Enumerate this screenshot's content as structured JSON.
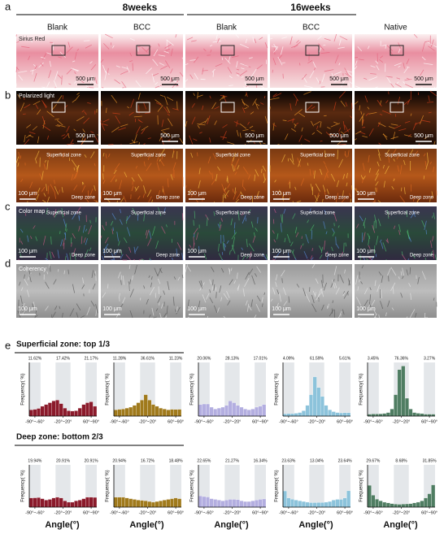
{
  "panel_labels": [
    "a",
    "b",
    "c",
    "d",
    "e"
  ],
  "groups": [
    "8weeks",
    "16weeks"
  ],
  "columns": [
    "Blank",
    "BCC",
    "Blank",
    "BCC",
    "Native"
  ],
  "image_rows": [
    {
      "label": "Sirius Red",
      "scale_bar": "500 μm"
    },
    {
      "label": "Polarized light",
      "scale_bar": "500 μm"
    },
    {
      "scale_bar": "100 μm"
    },
    {
      "label": "Color map",
      "scale_bar": "100 μm"
    },
    {
      "label": "Coherency",
      "scale_bar": "100 μm"
    }
  ],
  "zone_labels": {
    "top": "Superficial zone",
    "bottom": "Deep zone"
  },
  "sections": [
    "Superficial zone: top 1/3",
    "Deep zone: bottom 2/3"
  ],
  "x_axis_label": "Angle(°)",
  "chart_data": [
    {
      "type": "histogram",
      "y_label": "Frequency( %)",
      "color": "#8b1a2b",
      "xlim": [
        -90,
        90
      ],
      "ylim": [
        0,
        30
      ],
      "bins": [
        -90,
        -80,
        -70,
        -60,
        -50,
        -40,
        -30,
        -20,
        -10,
        0,
        10,
        20,
        30,
        40,
        50,
        60,
        70,
        80,
        90
      ],
      "values": [
        3.5,
        3.8,
        4.3,
        5.5,
        6.5,
        7.5,
        8.5,
        9.0,
        7.0,
        4.5,
        3.0,
        2.8,
        3.0,
        4.5,
        6.5,
        7.5,
        8.0,
        5.5
      ],
      "xticks": [
        {
          "value": -75,
          "label": "-90°~-60°"
        },
        {
          "value": 0,
          "label": "-20°~20°"
        },
        {
          "value": 75,
          "label": "60°~90°"
        }
      ],
      "shaded_ranges": [
        [
          -90,
          -60
        ],
        [
          -20,
          20
        ],
        [
          60,
          90
        ]
      ],
      "range_labels": [
        "11.62%",
        "17.42%",
        "21.17%"
      ]
    },
    {
      "type": "histogram",
      "y_label": "Frequency( %)",
      "color": "#a07a1c",
      "xlim": [
        -90,
        90
      ],
      "ylim": [
        0,
        30
      ],
      "bins": [
        -90,
        -80,
        -70,
        -60,
        -50,
        -40,
        -30,
        -20,
        -10,
        0,
        10,
        20,
        30,
        40,
        50,
        60,
        70,
        80,
        90
      ],
      "values": [
        3.5,
        3.8,
        4.0,
        4.5,
        5.0,
        6.0,
        7.5,
        9.0,
        12.0,
        9.0,
        6.5,
        5.5,
        4.5,
        4.0,
        3.5,
        3.8,
        3.7,
        3.8
      ],
      "xticks": [
        {
          "value": -75,
          "label": "-90°~-60°"
        },
        {
          "value": 0,
          "label": "-20°~20°"
        },
        {
          "value": 75,
          "label": "60°~90°"
        }
      ],
      "shaded_ranges": [
        [
          -90,
          -60
        ],
        [
          -20,
          20
        ],
        [
          60,
          90
        ]
      ],
      "range_labels": [
        "11.28%",
        "36.61%",
        "11.23%"
      ]
    },
    {
      "type": "histogram",
      "y_label": "Frequency( %)",
      "color": "#b3aee0",
      "xlim": [
        -90,
        90
      ],
      "ylim": [
        0,
        30
      ],
      "bins": [
        -90,
        -80,
        -70,
        -60,
        -50,
        -40,
        -30,
        -20,
        -10,
        0,
        10,
        20,
        30,
        40,
        50,
        60,
        70,
        80,
        90
      ],
      "values": [
        6.5,
        6.8,
        6.8,
        5.0,
        4.0,
        4.5,
        5.0,
        6.0,
        8.5,
        7.5,
        6.0,
        5.0,
        4.0,
        3.5,
        4.0,
        5.0,
        5.5,
        6.5
      ],
      "xticks": [
        {
          "value": -75,
          "label": "-90°~-60°"
        },
        {
          "value": 0,
          "label": "-20°~20°"
        },
        {
          "value": 75,
          "label": "60°~90°"
        }
      ],
      "shaded_ranges": [
        [
          -90,
          -60
        ],
        [
          -20,
          20
        ],
        [
          60,
          90
        ]
      ],
      "range_labels": [
        "20.06%",
        "28.13%",
        "17.01%"
      ]
    },
    {
      "type": "histogram",
      "y_label": "Frequency( %)",
      "color": "#8cc3db",
      "xlim": [
        -90,
        90
      ],
      "ylim": [
        0,
        30
      ],
      "bins": [
        -90,
        -80,
        -70,
        -60,
        -50,
        -40,
        -30,
        -20,
        -10,
        0,
        10,
        20,
        30,
        40,
        50,
        60,
        70,
        80,
        90
      ],
      "values": [
        1.3,
        1.4,
        1.4,
        1.6,
        2.0,
        3.0,
        6.0,
        12.0,
        22.0,
        16.0,
        11.0,
        6.0,
        3.5,
        2.5,
        2.0,
        1.8,
        1.9,
        1.9
      ],
      "xticks": [
        {
          "value": -75,
          "label": "-90°~-60°"
        },
        {
          "value": 0,
          "label": "-20°~20°"
        },
        {
          "value": 75,
          "label": "60°~90°"
        }
      ],
      "shaded_ranges": [
        [
          -90,
          -60
        ],
        [
          -20,
          20
        ],
        [
          60,
          90
        ]
      ],
      "range_labels": [
        "4.09%",
        "61.59%",
        "5.61%"
      ]
    },
    {
      "type": "histogram",
      "y_label": "Frequency( %)",
      "color": "#4f7d62",
      "xlim": [
        -90,
        90
      ],
      "ylim": [
        0,
        30
      ],
      "bins": [
        -90,
        -80,
        -70,
        -60,
        -50,
        -40,
        -30,
        -20,
        -10,
        0,
        10,
        20,
        30,
        40,
        50,
        60,
        70,
        80,
        90
      ],
      "values": [
        1.1,
        1.2,
        1.2,
        1.3,
        1.5,
        2.0,
        4.0,
        12.0,
        26.0,
        28.0,
        10.0,
        4.0,
        2.0,
        1.6,
        1.4,
        1.1,
        1.1,
        1.1
      ],
      "xticks": [
        {
          "value": -75,
          "label": "-90°~-60°"
        },
        {
          "value": 0,
          "label": "-20°~20°"
        },
        {
          "value": 75,
          "label": "60°~90°"
        }
      ],
      "shaded_ranges": [
        [
          -90,
          -60
        ],
        [
          -20,
          20
        ],
        [
          60,
          90
        ]
      ],
      "range_labels": [
        "3.45%",
        "76.36%",
        "3.27%"
      ]
    },
    {
      "type": "histogram",
      "y_label": "Frequency( %)",
      "color": "#8b1a2b",
      "xlim": [
        -90,
        90
      ],
      "ylim": [
        0,
        30
      ],
      "bins": [
        -90,
        -80,
        -70,
        -60,
        -50,
        -40,
        -30,
        -20,
        -10,
        0,
        10,
        20,
        30,
        40,
        50,
        60,
        70,
        80,
        90
      ],
      "values": [
        6.5,
        6.6,
        6.8,
        6.0,
        5.0,
        5.5,
        6.5,
        7.0,
        6.5,
        4.5,
        3.5,
        3.5,
        4.5,
        5.0,
        6.0,
        7.0,
        7.0,
        6.9
      ],
      "xticks": [
        {
          "value": -75,
          "label": "-90°~-60°"
        },
        {
          "value": 0,
          "label": "-20°~20°"
        },
        {
          "value": 75,
          "label": "60°~90°"
        }
      ],
      "shaded_ranges": [
        [
          -90,
          -60
        ],
        [
          -20,
          20
        ],
        [
          60,
          90
        ]
      ],
      "range_labels": [
        "19.94%",
        "20.91%",
        "20.91%"
      ]
    },
    {
      "type": "histogram",
      "y_label": "Frequency( %)",
      "color": "#a07a1c",
      "xlim": [
        -90,
        90
      ],
      "ylim": [
        0,
        30
      ],
      "bins": [
        -90,
        -80,
        -70,
        -60,
        -50,
        -40,
        -30,
        -20,
        -10,
        0,
        10,
        20,
        30,
        40,
        50,
        60,
        70,
        80,
        90
      ],
      "values": [
        7.0,
        7.0,
        7.0,
        6.5,
        6.0,
        5.5,
        5.0,
        4.8,
        4.5,
        4.0,
        3.5,
        4.0,
        4.5,
        5.0,
        5.5,
        6.0,
        6.5,
        6.0
      ],
      "xticks": [
        {
          "value": -75,
          "label": "-90°~-60°"
        },
        {
          "value": 0,
          "label": "-20°~20°"
        },
        {
          "value": 75,
          "label": "60°~90°"
        }
      ],
      "shaded_ranges": [
        [
          -90,
          -60
        ],
        [
          -20,
          20
        ],
        [
          60,
          90
        ]
      ],
      "range_labels": [
        "20.94%",
        "16.72%",
        "18.48%"
      ]
    },
    {
      "type": "histogram",
      "y_label": "Frequency( %)",
      "color": "#b3aee0",
      "xlim": [
        -90,
        90
      ],
      "ylim": [
        0,
        30
      ],
      "bins": [
        -90,
        -80,
        -70,
        -60,
        -50,
        -40,
        -30,
        -20,
        -10,
        0,
        10,
        20,
        30,
        40,
        50,
        60,
        70,
        80,
        90
      ],
      "values": [
        8.0,
        7.5,
        7.2,
        6.0,
        5.5,
        5.0,
        4.5,
        5.0,
        5.5,
        5.5,
        5.3,
        4.5,
        4.0,
        4.0,
        4.5,
        5.0,
        5.5,
        5.8
      ],
      "xticks": [
        {
          "value": -75,
          "label": "-90°~-60°"
        },
        {
          "value": 0,
          "label": "-20°~20°"
        },
        {
          "value": 75,
          "label": "60°~90°"
        }
      ],
      "shaded_ranges": [
        [
          -90,
          -60
        ],
        [
          -20,
          20
        ],
        [
          60,
          90
        ]
      ],
      "range_labels": [
        "22.65%",
        "21.27%",
        "16.34%"
      ]
    },
    {
      "type": "histogram",
      "y_label": "Frequency( %)",
      "color": "#8cc3db",
      "xlim": [
        -90,
        90
      ],
      "ylim": [
        0,
        30
      ],
      "bins": [
        -90,
        -80,
        -70,
        -60,
        -50,
        -40,
        -30,
        -20,
        -10,
        0,
        10,
        20,
        30,
        40,
        50,
        60,
        70,
        80,
        90
      ],
      "values": [
        11.5,
        6.5,
        5.6,
        5.0,
        4.5,
        4.0,
        3.5,
        3.2,
        3.2,
        3.3,
        3.3,
        3.5,
        4.0,
        5.0,
        5.5,
        5.5,
        6.5,
        11.6
      ],
      "xticks": [
        {
          "value": -75,
          "label": "-90°~-60°"
        },
        {
          "value": 0,
          "label": "-20°~20°"
        },
        {
          "value": 75,
          "label": "60°~90°"
        }
      ],
      "shaded_ranges": [
        [
          -90,
          -60
        ],
        [
          -20,
          20
        ],
        [
          60,
          90
        ]
      ],
      "range_labels": [
        "23.63%",
        "13.04%",
        "23.64%"
      ]
    },
    {
      "type": "histogram",
      "y_label": "Frequency( %)",
      "color": "#4f7d62",
      "xlim": [
        -90,
        90
      ],
      "ylim": [
        0,
        30
      ],
      "bins": [
        -90,
        -80,
        -70,
        -60,
        -50,
        -40,
        -30,
        -20,
        -10,
        0,
        10,
        20,
        30,
        40,
        50,
        60,
        70,
        80,
        90
      ],
      "values": [
        15.5,
        8.5,
        5.7,
        4.5,
        3.5,
        3.0,
        2.5,
        2.2,
        2.0,
        2.2,
        2.3,
        2.5,
        3.0,
        3.5,
        4.5,
        6.5,
        9.5,
        15.8
      ],
      "xticks": [
        {
          "value": -75,
          "label": "-90°~-60°"
        },
        {
          "value": 0,
          "label": "-20°~20°"
        },
        {
          "value": 75,
          "label": "60°~90°"
        }
      ],
      "shaded_ranges": [
        [
          -90,
          -60
        ],
        [
          -20,
          20
        ],
        [
          60,
          90
        ]
      ],
      "range_labels": [
        "29.67%",
        "8.68%",
        "31.85%"
      ]
    }
  ]
}
